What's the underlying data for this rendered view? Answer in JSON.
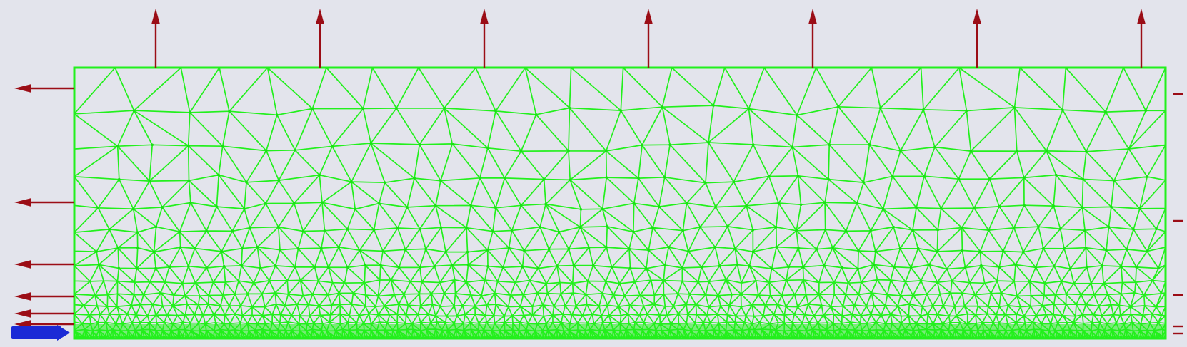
{
  "colors": {
    "background": "#e3e4ec",
    "mesh": "#22f01c",
    "mesh_node": "#19e014",
    "load_arrow": "#9b0d16",
    "fixture": "#1b2ad6"
  },
  "icons": {
    "load_arrow": "arrow-icon",
    "fixture": "fixture-arrow-icon"
  },
  "mesh": {
    "element_type": "triangle",
    "refinement": "fine-near-bottom"
  }
}
